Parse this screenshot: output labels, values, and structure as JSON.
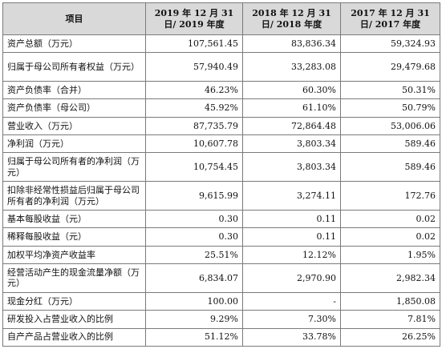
{
  "table": {
    "headers": [
      "项目",
      "2019 年 12 月 31 日/ 2019 年度",
      "2018 年 12 月 31 日/ 2018 年度",
      "2017 年 12 月 31 日/ 2017 年度"
    ],
    "rows": [
      {
        "label": "资产总额（万元）",
        "values": [
          "107,561.45",
          "83,836.34",
          "59,324.93"
        ]
      },
      {
        "label": "归属于母公司所有者权益（万元）",
        "values": [
          "57,940.49",
          "33,283.08",
          "29,479.68"
        ]
      },
      {
        "label": "资产负债率（合并）",
        "values": [
          "46.23%",
          "60.30%",
          "50.31%"
        ]
      },
      {
        "label": "资产负债率（母公司）",
        "values": [
          "45.92%",
          "61.10%",
          "50.79%"
        ]
      },
      {
        "label": "营业收入（万元）",
        "values": [
          "87,735.79",
          "72,864.48",
          "53,006.06"
        ]
      },
      {
        "label": "净利润（万元）",
        "values": [
          "10,607.78",
          "3,803.34",
          "589.46"
        ]
      },
      {
        "label": "归属于母公司所有者的净利润（万元）",
        "values": [
          "10,754.45",
          "3,803.34",
          "589.46"
        ]
      },
      {
        "label": "扣除非经常性损益后归属于母公司所有者的净利润（万元）",
        "values": [
          "9,615.99",
          "3,274.11",
          "172.76"
        ]
      },
      {
        "label": "基本每股收益（元）",
        "values": [
          "0.30",
          "0.11",
          "0.02"
        ]
      },
      {
        "label": "稀释每股收益（元）",
        "values": [
          "0.30",
          "0.11",
          "0.02"
        ]
      },
      {
        "label": "加权平均净资产收益率",
        "values": [
          "25.51%",
          "12.12%",
          "1.95%"
        ]
      },
      {
        "label": "经营活动产生的现金流量净额（万元）",
        "values": [
          "6,834.07",
          "2,970.90",
          "2,982.34"
        ]
      },
      {
        "label": "现金分红（万元）",
        "values": [
          "100.00",
          "-",
          "1,850.08"
        ]
      },
      {
        "label": "研发投入占营业收入的比例",
        "values": [
          "9.29%",
          "7.30%",
          "7.81%"
        ]
      },
      {
        "label": "自产产品占营业收入的比例",
        "values": [
          "51.12%",
          "33.78%",
          "26.25%"
        ]
      }
    ]
  }
}
